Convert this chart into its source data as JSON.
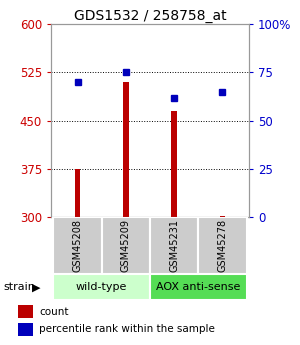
{
  "title": "GDS1532 / 258758_at",
  "samples": [
    "GSM45208",
    "GSM45209",
    "GSM45231",
    "GSM45278"
  ],
  "counts": [
    375,
    510,
    465,
    302
  ],
  "percentiles": [
    70,
    75,
    62,
    65
  ],
  "ylim_left": [
    300,
    600
  ],
  "ylim_right": [
    0,
    100
  ],
  "yticks_left": [
    300,
    375,
    450,
    525,
    600
  ],
  "yticks_right": [
    0,
    25,
    50,
    75,
    100
  ],
  "yticklabels_right": [
    "0",
    "25",
    "50",
    "75",
    "100%"
  ],
  "bar_color": "#bb0000",
  "dot_color": "#0000bb",
  "bar_width": 0.12,
  "bar_bottom": 300,
  "groups": [
    {
      "label": "wild-type",
      "indices": [
        0,
        1
      ],
      "color": "#ccffcc"
    },
    {
      "label": "AOX anti-sense",
      "indices": [
        2,
        3
      ],
      "color": "#55dd55"
    }
  ],
  "strain_label": "strain",
  "legend_items": [
    {
      "color": "#bb0000",
      "label": "count"
    },
    {
      "color": "#0000bb",
      "label": "percentile rank within the sample"
    }
  ],
  "background_color": "#ffffff",
  "sample_box_color": "#cccccc",
  "left_tick_color": "#cc0000",
  "right_tick_color": "#0000cc"
}
